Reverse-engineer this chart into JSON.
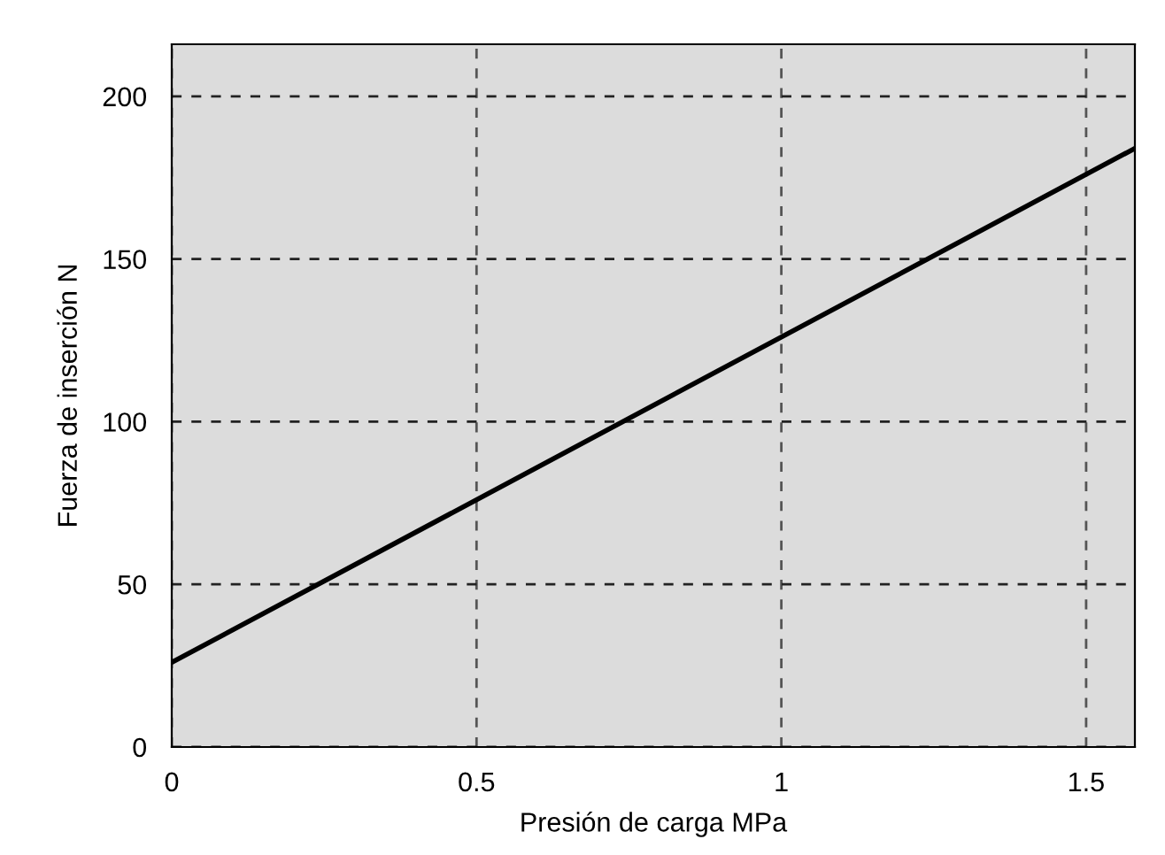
{
  "chart_data": {
    "type": "line",
    "xlabel": "Presión de carga MPa",
    "ylabel": "Fuerza de inserción N",
    "x": [
      0,
      1.58
    ],
    "series": [
      {
        "color": "#000000",
        "values": [
          26,
          184
        ]
      }
    ],
    "xlim": [
      0,
      1.58
    ],
    "xticks": [
      0,
      0.5,
      1,
      1.5
    ],
    "ylim": [
      0,
      216
    ],
    "yticks": [
      0,
      50,
      100,
      150,
      200
    ],
    "grid": true,
    "line_style": "solid",
    "marker": "none",
    "legend": false
  }
}
